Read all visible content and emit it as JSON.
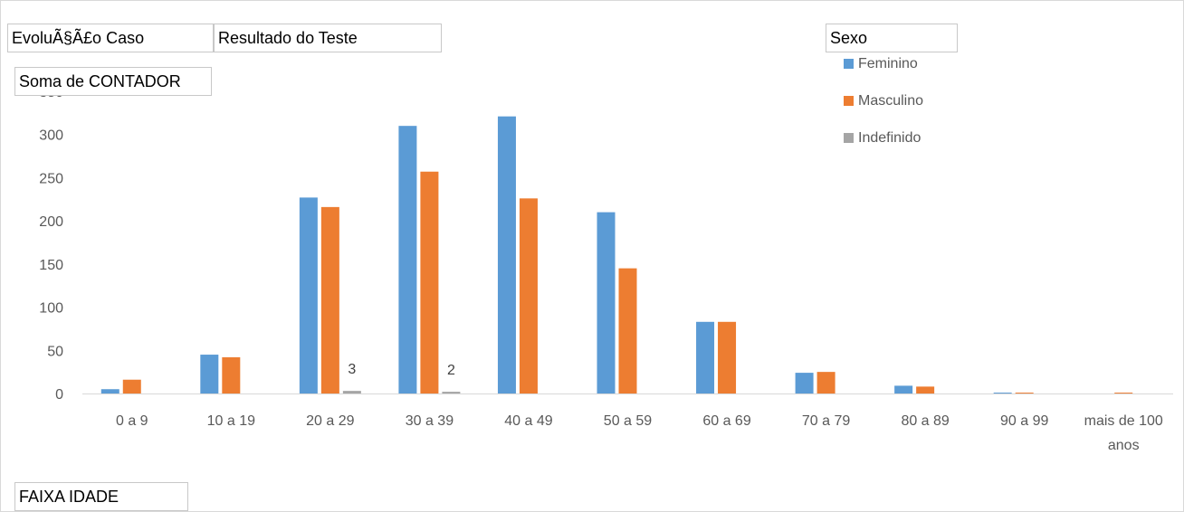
{
  "filters": {
    "evolucao_label": "EvoluÃ§Ã£o Caso",
    "resultado_label": "Resultado do Teste",
    "sexo_label": "Sexo",
    "soma_label": "Soma de CONTADOR",
    "faixa_label": "FAIXA IDADE"
  },
  "chart_data": {
    "type": "bar",
    "categories": [
      "0 a 9",
      "10 a 19",
      "20 a 29",
      "30 a 39",
      "40 a 49",
      "50 a 59",
      "60 a 69",
      "70 a 79",
      "80 a 89",
      "90 a 99",
      "mais de 100 anos"
    ],
    "series": [
      {
        "name": "Feminino",
        "color": "#5b9bd5",
        "values": [
          5,
          45,
          227,
          310,
          321,
          210,
          83,
          24,
          9,
          1,
          0
        ]
      },
      {
        "name": "Masculino",
        "color": "#ed7d31",
        "values": [
          16,
          42,
          216,
          257,
          226,
          145,
          83,
          25,
          8,
          1,
          1
        ]
      },
      {
        "name": "Indefinido",
        "color": "#a5a5a5",
        "values": [
          0,
          0,
          3,
          2,
          0,
          0,
          0,
          0,
          0,
          0,
          0
        ]
      }
    ],
    "data_labels": [
      {
        "series": 2,
        "index": 2,
        "text": "3"
      },
      {
        "series": 2,
        "index": 3,
        "text": "2"
      }
    ],
    "y_ticks": [
      "0",
      "50",
      "100",
      "150",
      "200",
      "250",
      "300",
      "350"
    ],
    "ylim": [
      0,
      350
    ],
    "grid": false,
    "legend_position": "top-right"
  }
}
